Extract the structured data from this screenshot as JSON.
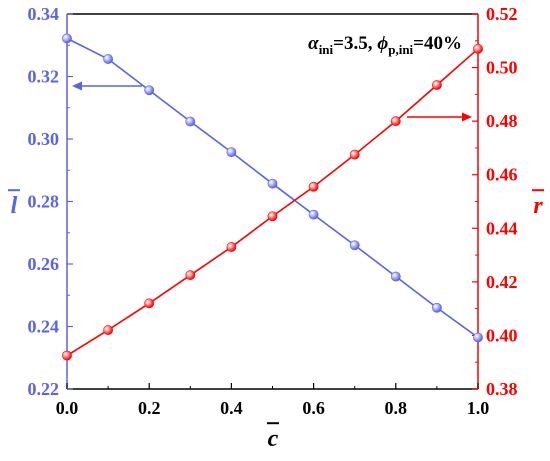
{
  "chart_data": {
    "type": "line",
    "title": "",
    "annotation": {
      "parts": [
        {
          "text": "α",
          "style": "italic"
        },
        {
          "text": "ini",
          "style": "sub"
        },
        {
          "text": "=3.5, ",
          "style": "normal"
        },
        {
          "text": "ϕ",
          "style": "italic"
        },
        {
          "text": "p,ini",
          "style": "sub"
        },
        {
          "text": "=40%",
          "style": "normal"
        }
      ]
    },
    "x": [
      0.0,
      0.1,
      0.2,
      0.3,
      0.4,
      0.5,
      0.6,
      0.7,
      0.8,
      0.9,
      1.0
    ],
    "xlabel": "c",
    "xlim": [
      0.0,
      1.0
    ],
    "xticks": [
      "0.0",
      "0.2",
      "0.4",
      "0.6",
      "0.8",
      "1.0"
    ],
    "grid": false,
    "series": [
      {
        "name": "l",
        "axis": "left",
        "color": "#5b63e6",
        "values": [
          0.3322,
          0.3256,
          0.3156,
          0.3056,
          0.2958,
          0.2857,
          0.2758,
          0.266,
          0.256,
          0.246,
          0.2365
        ]
      },
      {
        "name": "r",
        "axis": "right",
        "color": "#ff0000",
        "values": [
          0.3925,
          0.402,
          0.412,
          0.4225,
          0.433,
          0.4445,
          0.4555,
          0.4675,
          0.48,
          0.4935,
          0.507
        ]
      }
    ],
    "y_left": {
      "label": "l",
      "lim": [
        0.22,
        0.34
      ],
      "ticks": [
        "0.22",
        "0.24",
        "0.26",
        "0.28",
        "0.30",
        "0.32",
        "0.34"
      ],
      "color": "#5b63e6"
    },
    "y_right": {
      "label": "r",
      "lim": [
        0.38,
        0.52
      ],
      "ticks": [
        "0.38",
        "0.40",
        "0.42",
        "0.44",
        "0.46",
        "0.48",
        "0.50",
        "0.52"
      ],
      "color": "#ff0000"
    }
  }
}
